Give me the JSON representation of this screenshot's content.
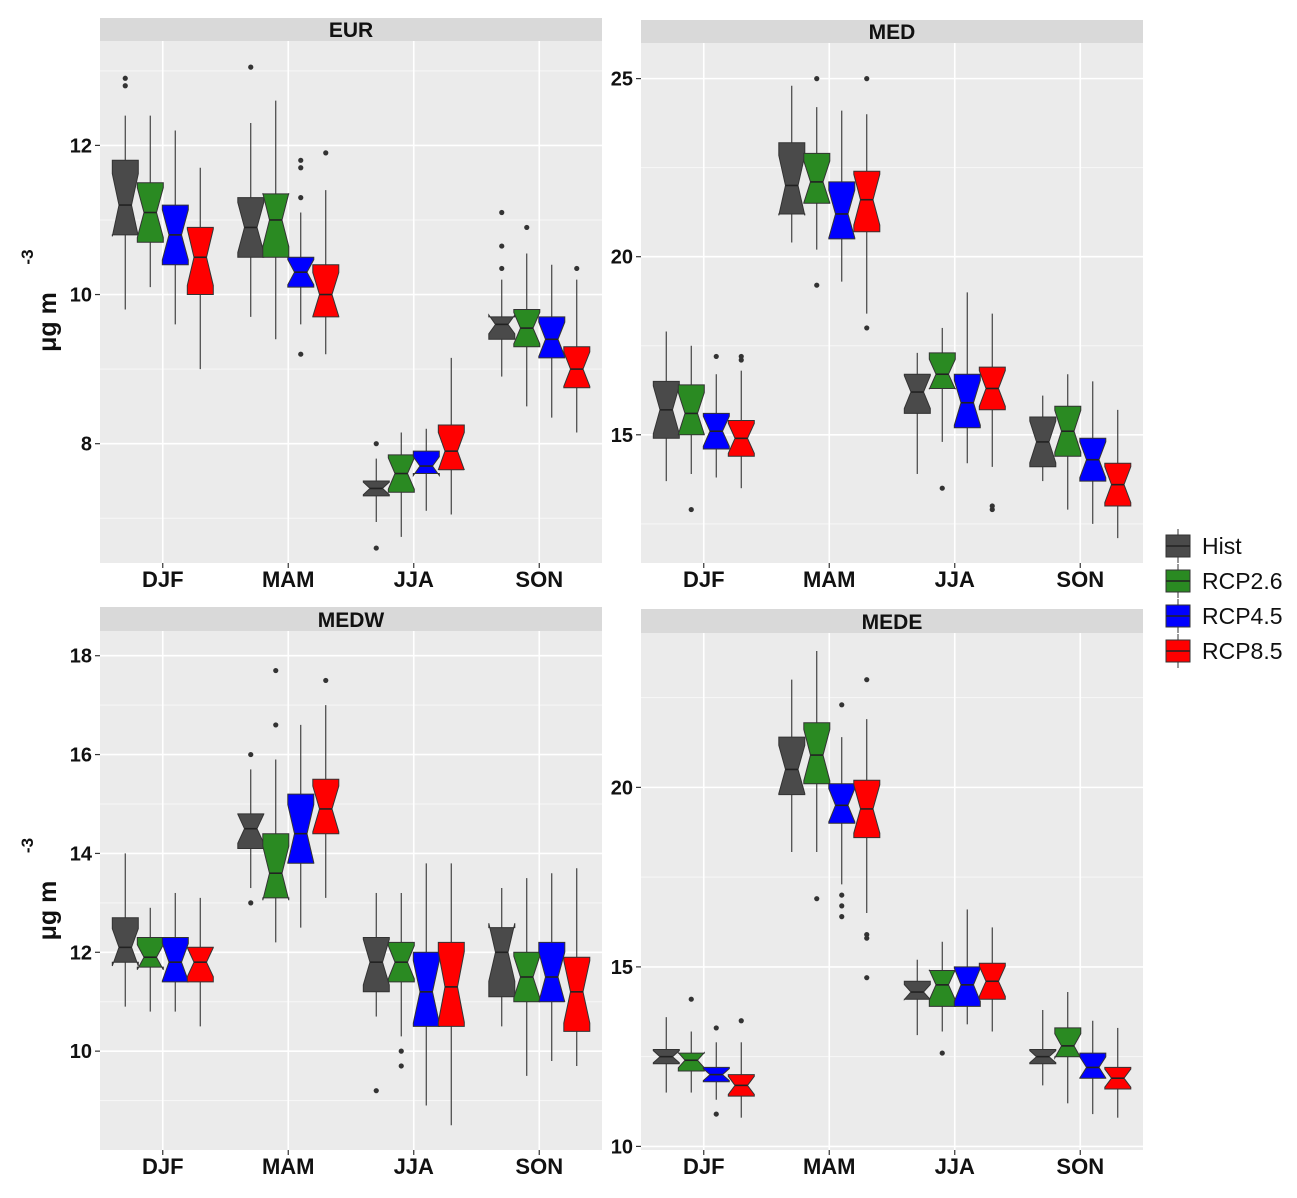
{
  "chart_data": {
    "type": "boxplot",
    "notched": true,
    "categories": [
      "DJF",
      "MAM",
      "JJA",
      "SON"
    ],
    "series_names": [
      "Hist",
      "RCP2.6",
      "RCP4.5",
      "RCP8.5"
    ],
    "series_colors": [
      "#4a4a4a",
      "#2a8a22",
      "#0000ff",
      "#ff0000"
    ],
    "ylabel": {
      "base": "μg m",
      "exponent": "-3"
    },
    "legend": {
      "position": "right",
      "entries": [
        "Hist",
        "RCP2.6",
        "RCP4.5",
        "RCP8.5"
      ]
    },
    "panels": [
      {
        "title": "EUR",
        "ylim": [
          6.4,
          13.4
        ],
        "yticks": [
          "8",
          "10",
          "12"
        ],
        "show_ylabel": true,
        "boxes": [
          [
            {
              "q1": 10.8,
              "med": 11.2,
              "q3": 11.8,
              "lo": 9.8,
              "hi": 12.4,
              "out": [
                12.8,
                12.9
              ]
            },
            {
              "q1": 10.7,
              "med": 11.1,
              "q3": 11.5,
              "lo": 10.1,
              "hi": 12.4,
              "out": []
            },
            {
              "q1": 10.4,
              "med": 10.8,
              "q3": 11.2,
              "lo": 9.6,
              "hi": 12.2,
              "out": []
            },
            {
              "q1": 10.0,
              "med": 10.5,
              "q3": 10.9,
              "lo": 9.0,
              "hi": 11.7,
              "out": []
            }
          ],
          [
            {
              "q1": 10.5,
              "med": 10.9,
              "q3": 11.3,
              "lo": 9.7,
              "hi": 12.3,
              "out": [
                13.05
              ]
            },
            {
              "q1": 10.5,
              "med": 11.0,
              "q3": 11.35,
              "lo": 9.4,
              "hi": 12.6,
              "out": []
            },
            {
              "q1": 10.1,
              "med": 10.3,
              "q3": 10.5,
              "lo": 9.6,
              "hi": 11.1,
              "out": [
                11.3,
                11.7,
                11.8,
                9.2
              ]
            },
            {
              "q1": 9.7,
              "med": 10.0,
              "q3": 10.4,
              "lo": 9.2,
              "hi": 11.4,
              "out": [
                11.9
              ]
            }
          ],
          [
            {
              "q1": 7.3,
              "med": 7.4,
              "q3": 7.5,
              "lo": 6.95,
              "hi": 7.8,
              "out": [
                8.0,
                6.6
              ]
            },
            {
              "q1": 7.35,
              "med": 7.6,
              "q3": 7.85,
              "lo": 6.75,
              "hi": 8.15,
              "out": []
            },
            {
              "q1": 7.6,
              "med": 7.7,
              "q3": 7.9,
              "lo": 7.1,
              "hi": 8.2,
              "out": []
            },
            {
              "q1": 7.65,
              "med": 7.9,
              "q3": 8.25,
              "lo": 7.05,
              "hi": 9.15,
              "out": []
            }
          ],
          [
            {
              "q1": 9.4,
              "med": 9.6,
              "q3": 9.7,
              "lo": 8.9,
              "hi": 10.2,
              "out": [
                10.35,
                10.65,
                11.1
              ]
            },
            {
              "q1": 9.3,
              "med": 9.55,
              "q3": 9.8,
              "lo": 8.5,
              "hi": 10.55,
              "out": [
                10.9
              ]
            },
            {
              "q1": 9.15,
              "med": 9.4,
              "q3": 9.7,
              "lo": 8.35,
              "hi": 10.4,
              "out": []
            },
            {
              "q1": 8.75,
              "med": 9.0,
              "q3": 9.3,
              "lo": 8.15,
              "hi": 10.2,
              "out": [
                10.35
              ]
            }
          ]
        ]
      },
      {
        "title": "MED",
        "ylim": [
          11.4,
          26.0
        ],
        "yticks": [
          "15",
          "20",
          "25"
        ],
        "show_ylabel": false,
        "boxes": [
          [
            {
              "q1": 14.9,
              "med": 15.7,
              "q3": 16.5,
              "lo": 13.7,
              "hi": 17.9,
              "out": []
            },
            {
              "q1": 15.0,
              "med": 15.6,
              "q3": 16.4,
              "lo": 13.9,
              "hi": 17.5,
              "out": [
                12.9
              ]
            },
            {
              "q1": 14.6,
              "med": 15.1,
              "q3": 15.6,
              "lo": 13.8,
              "hi": 16.7,
              "out": [
                17.2
              ]
            },
            {
              "q1": 14.4,
              "med": 14.9,
              "q3": 15.4,
              "lo": 13.5,
              "hi": 16.8,
              "out": [
                17.1,
                17.2
              ]
            }
          ],
          [
            {
              "q1": 21.2,
              "med": 22.0,
              "q3": 23.2,
              "lo": 20.4,
              "hi": 24.8,
              "out": []
            },
            {
              "q1": 21.5,
              "med": 22.1,
              "q3": 22.9,
              "lo": 20.2,
              "hi": 24.2,
              "out": [
                25.0,
                19.2
              ]
            },
            {
              "q1": 20.5,
              "med": 21.2,
              "q3": 22.1,
              "lo": 19.3,
              "hi": 24.1,
              "out": []
            },
            {
              "q1": 20.7,
              "med": 21.6,
              "q3": 22.4,
              "lo": 18.4,
              "hi": 24.0,
              "out": [
                25.0,
                18.0
              ]
            }
          ],
          [
            {
              "q1": 15.6,
              "med": 16.2,
              "q3": 16.7,
              "lo": 13.9,
              "hi": 17.3,
              "out": []
            },
            {
              "q1": 16.3,
              "med": 16.7,
              "q3": 17.3,
              "lo": 14.8,
              "hi": 18.0,
              "out": [
                13.5
              ]
            },
            {
              "q1": 15.2,
              "med": 15.9,
              "q3": 16.7,
              "lo": 14.2,
              "hi": 19.0,
              "out": []
            },
            {
              "q1": 15.7,
              "med": 16.3,
              "q3": 16.9,
              "lo": 14.1,
              "hi": 18.4,
              "out": [
                12.9,
                13.0
              ]
            }
          ],
          [
            {
              "q1": 14.1,
              "med": 14.8,
              "q3": 15.5,
              "lo": 13.7,
              "hi": 16.1,
              "out": []
            },
            {
              "q1": 14.4,
              "med": 15.1,
              "q3": 15.8,
              "lo": 12.9,
              "hi": 16.7,
              "out": []
            },
            {
              "q1": 13.7,
              "med": 14.3,
              "q3": 14.9,
              "lo": 12.5,
              "hi": 16.5,
              "out": []
            },
            {
              "q1": 13.0,
              "med": 13.6,
              "q3": 14.2,
              "lo": 12.1,
              "hi": 15.7,
              "out": []
            }
          ]
        ]
      },
      {
        "title": "MEDW",
        "ylim": [
          8.0,
          18.5
        ],
        "yticks": [
          "10",
          "12",
          "14",
          "16",
          "18"
        ],
        "show_ylabel": true,
        "boxes": [
          [
            {
              "q1": 11.8,
              "med": 12.1,
              "q3": 12.7,
              "lo": 10.9,
              "hi": 14.0,
              "out": []
            },
            {
              "q1": 11.7,
              "med": 11.9,
              "q3": 12.3,
              "lo": 10.8,
              "hi": 12.9,
              "out": []
            },
            {
              "q1": 11.4,
              "med": 11.8,
              "q3": 12.3,
              "lo": 10.8,
              "hi": 13.2,
              "out": []
            },
            {
              "q1": 11.4,
              "med": 11.8,
              "q3": 12.1,
              "lo": 10.5,
              "hi": 13.1,
              "out": []
            }
          ],
          [
            {
              "q1": 14.1,
              "med": 14.5,
              "q3": 14.8,
              "lo": 13.3,
              "hi": 15.7,
              "out": [
                16.0,
                13.0
              ]
            },
            {
              "q1": 13.1,
              "med": 13.6,
              "q3": 14.4,
              "lo": 12.2,
              "hi": 15.9,
              "out": [
                16.6,
                17.7
              ]
            },
            {
              "q1": 13.8,
              "med": 14.4,
              "q3": 15.2,
              "lo": 12.5,
              "hi": 16.6,
              "out": []
            },
            {
              "q1": 14.4,
              "med": 14.9,
              "q3": 15.5,
              "lo": 13.1,
              "hi": 17.0,
              "out": [
                17.5
              ]
            }
          ],
          [
            {
              "q1": 11.2,
              "med": 11.8,
              "q3": 12.3,
              "lo": 10.7,
              "hi": 13.2,
              "out": [
                9.2
              ]
            },
            {
              "q1": 11.4,
              "med": 11.8,
              "q3": 12.2,
              "lo": 10.3,
              "hi": 13.2,
              "out": [
                9.7,
                10.0
              ]
            },
            {
              "q1": 10.5,
              "med": 11.2,
              "q3": 12.0,
              "lo": 8.9,
              "hi": 13.8,
              "out": []
            },
            {
              "q1": 10.5,
              "med": 11.3,
              "q3": 12.2,
              "lo": 8.5,
              "hi": 13.8,
              "out": []
            }
          ],
          [
            {
              "q1": 11.1,
              "med": 12.0,
              "q3": 12.5,
              "lo": 10.5,
              "hi": 13.3,
              "out": []
            },
            {
              "q1": 11.0,
              "med": 11.5,
              "q3": 12.0,
              "lo": 9.5,
              "hi": 13.5,
              "out": []
            },
            {
              "q1": 11.0,
              "med": 11.5,
              "q3": 12.2,
              "lo": 9.8,
              "hi": 13.6,
              "out": []
            },
            {
              "q1": 10.4,
              "med": 11.2,
              "q3": 11.9,
              "lo": 9.7,
              "hi": 13.7,
              "out": []
            }
          ]
        ]
      },
      {
        "title": "MEDE",
        "ylim": [
          9.9,
          24.3
        ],
        "yticks": [
          "10",
          "15",
          "20"
        ],
        "show_ylabel": false,
        "boxes": [
          [
            {
              "q1": 12.3,
              "med": 12.5,
              "q3": 12.7,
              "lo": 11.5,
              "hi": 13.6,
              "out": []
            },
            {
              "q1": 12.1,
              "med": 12.4,
              "q3": 12.6,
              "lo": 11.5,
              "hi": 13.2,
              "out": [
                14.1
              ]
            },
            {
              "q1": 11.8,
              "med": 12.0,
              "q3": 12.2,
              "lo": 11.3,
              "hi": 12.9,
              "out": [
                13.3,
                10.9
              ]
            },
            {
              "q1": 11.4,
              "med": 11.7,
              "q3": 12.0,
              "lo": 10.8,
              "hi": 12.9,
              "out": [
                13.5
              ]
            }
          ],
          [
            {
              "q1": 19.8,
              "med": 20.5,
              "q3": 21.4,
              "lo": 18.2,
              "hi": 23.0,
              "out": []
            },
            {
              "q1": 20.1,
              "med": 20.9,
              "q3": 21.8,
              "lo": 18.2,
              "hi": 23.8,
              "out": [
                16.9
              ]
            },
            {
              "q1": 19.0,
              "med": 19.5,
              "q3": 20.1,
              "lo": 17.3,
              "hi": 21.4,
              "out": [
                22.3,
                17.0,
                16.7,
                16.4
              ]
            },
            {
              "q1": 18.6,
              "med": 19.4,
              "q3": 20.2,
              "lo": 16.5,
              "hi": 21.9,
              "out": [
                23.0,
                15.9,
                15.8,
                14.7
              ]
            }
          ],
          [
            {
              "q1": 14.1,
              "med": 14.3,
              "q3": 14.6,
              "lo": 13.1,
              "hi": 15.2,
              "out": []
            },
            {
              "q1": 13.9,
              "med": 14.5,
              "q3": 14.9,
              "lo": 13.2,
              "hi": 15.7,
              "out": [
                12.6
              ]
            },
            {
              "q1": 13.9,
              "med": 14.5,
              "q3": 15.0,
              "lo": 13.4,
              "hi": 16.6,
              "out": []
            },
            {
              "q1": 14.1,
              "med": 14.6,
              "q3": 15.1,
              "lo": 13.2,
              "hi": 16.1,
              "out": []
            }
          ],
          [
            {
              "q1": 12.3,
              "med": 12.5,
              "q3": 12.7,
              "lo": 11.7,
              "hi": 13.8,
              "out": []
            },
            {
              "q1": 12.5,
              "med": 12.8,
              "q3": 13.3,
              "lo": 11.2,
              "hi": 14.3,
              "out": []
            },
            {
              "q1": 11.9,
              "med": 12.2,
              "q3": 12.6,
              "lo": 10.9,
              "hi": 13.5,
              "out": []
            },
            {
              "q1": 11.6,
              "med": 11.9,
              "q3": 12.2,
              "lo": 10.8,
              "hi": 13.3,
              "out": []
            }
          ]
        ]
      }
    ]
  }
}
